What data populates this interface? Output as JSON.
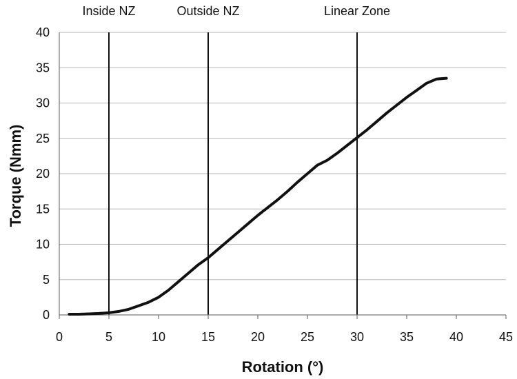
{
  "chart_data": {
    "type": "line",
    "xlabel": "Rotation (°)",
    "ylabel": "Torque (Nmm)",
    "xlim": [
      0,
      45
    ],
    "ylim": [
      0,
      40
    ],
    "x_ticks": [
      0,
      5,
      10,
      15,
      20,
      25,
      30,
      35,
      40,
      45
    ],
    "y_ticks": [
      0,
      5,
      10,
      15,
      20,
      25,
      30,
      35,
      40
    ],
    "grid": "horizontal",
    "zone_lines": [
      {
        "label": "Inside NZ",
        "x": 5
      },
      {
        "label": "Outside NZ",
        "x": 15
      },
      {
        "label": "Linear Zone",
        "x": 30
      }
    ],
    "series": [
      {
        "x": [
          1,
          2,
          3,
          4,
          5,
          6,
          7,
          8,
          9,
          10,
          11,
          12,
          13,
          14,
          15,
          16,
          17,
          18,
          19,
          20,
          21,
          22,
          23,
          24,
          25,
          26,
          27,
          28,
          29,
          30,
          31,
          32,
          33,
          34,
          35,
          36,
          37,
          38,
          39
        ],
        "values": [
          0.1,
          0.1,
          0.15,
          0.2,
          0.3,
          0.5,
          0.8,
          1.3,
          1.8,
          2.5,
          3.5,
          4.7,
          5.9,
          7.1,
          8.1,
          9.3,
          10.5,
          11.7,
          12.9,
          14.1,
          15.2,
          16.3,
          17.5,
          18.8,
          20.0,
          21.2,
          21.9,
          22.9,
          24.0,
          25.1,
          26.2,
          27.4,
          28.6,
          29.7,
          30.8,
          31.8,
          32.8,
          33.4,
          33.5
        ]
      }
    ]
  }
}
